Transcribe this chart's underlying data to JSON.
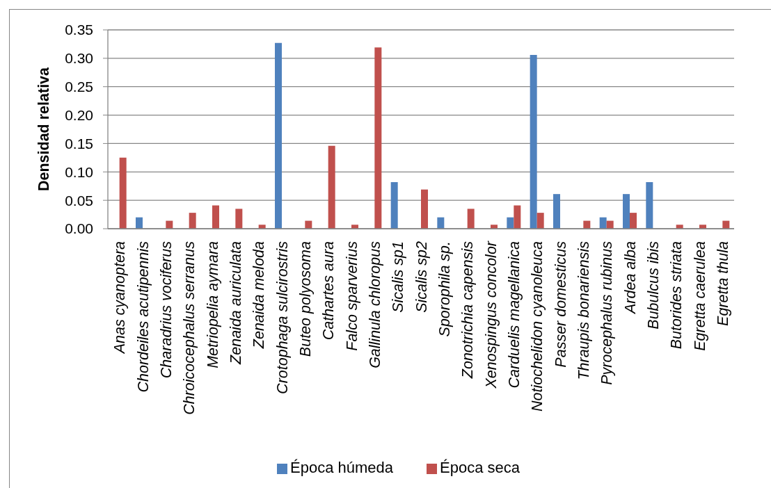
{
  "chart_data": {
    "type": "bar",
    "ylabel": "Densidad relativa",
    "categories": [
      "Anas cyanoptera",
      "Chordeiles acutipennis",
      "Charadrius vociferus",
      "Chroicocephalus serranus",
      "Metriopelia aymara",
      "Zenaida auriculata",
      "Zenaida meloda",
      "Crotophaga sulcirostris",
      "Buteo polyosoma",
      "Cathartes aura",
      "Falco sparverius",
      "Gallinula chloropus",
      "Sicalis sp1",
      "Sicalis sp2",
      "Sporophila sp.",
      "Zonotrichia capensis",
      "Xenospingus concolor",
      "Carduelis magellanica",
      "Notiochelidon cyanoleuca",
      "Passer domesticus",
      "Thraupis bonariensis",
      "Pyrocephalus rubinus",
      "Ardea alba",
      "Bubulcus ibis",
      "Butorides striata",
      "Egretta caerulea",
      "Egretta thula"
    ],
    "series": [
      {
        "name": "Época húmeda",
        "color": "#4f81bd",
        "values": [
          null,
          0.02,
          null,
          null,
          null,
          null,
          null,
          0.327,
          null,
          null,
          null,
          null,
          0.082,
          null,
          0.02,
          null,
          null,
          0.02,
          0.306,
          0.061,
          null,
          0.02,
          0.061,
          0.082,
          null,
          null,
          null
        ]
      },
      {
        "name": "Época seca",
        "color": "#c0504d",
        "values": [
          0.125,
          null,
          0.014,
          0.028,
          0.041,
          0.035,
          0.007,
          null,
          0.014,
          0.146,
          0.007,
          0.319,
          null,
          0.069,
          null,
          0.035,
          0.007,
          0.041,
          0.028,
          null,
          0.014,
          0.014,
          0.028,
          null,
          0.007,
          0.007,
          0.014
        ]
      }
    ],
    "ylim": [
      0,
      0.35
    ],
    "yticks": [
      {
        "value": 0,
        "label": "0.00"
      },
      0.05,
      {
        "value": 0.1,
        "label": "0.10"
      },
      0.15,
      {
        "value": 0.2,
        "label": "0.20"
      },
      0.25,
      {
        "value": 0.3,
        "label": "0.30"
      },
      0.35
    ],
    "grid": "y",
    "legend": "bottom"
  }
}
